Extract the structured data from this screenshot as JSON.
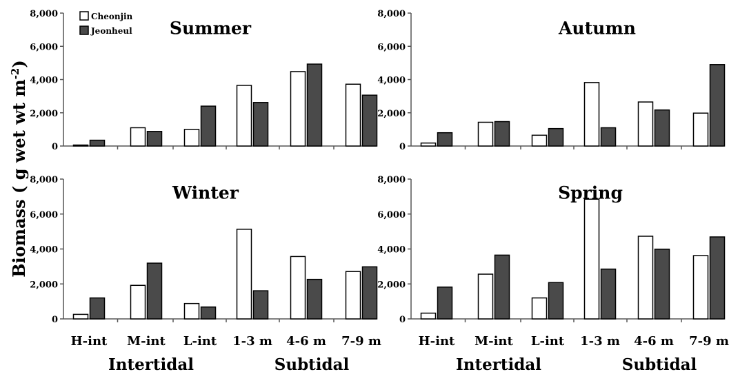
{
  "chart_data": {
    "type": "bar",
    "ylabel": "Biomass ( g wet wt m",
    "ylabel_superscript": "-2",
    "ylabel_close": ")",
    "ylim": [
      0,
      8000
    ],
    "yticks": [
      "0",
      "2,000",
      "4,000",
      "6,000",
      "8,000"
    ],
    "ytick_values": [
      0,
      2000,
      4000,
      6000,
      8000
    ],
    "categories": [
      "H-int",
      "M-int",
      "L-int",
      "1-3 m",
      "4-6 m",
      "7-9 m"
    ],
    "groups": [
      "Intertidal",
      "Subtidal"
    ],
    "legend": {
      "placement": "top-left",
      "entries": [
        {
          "name": "Cheonjin",
          "color": "#ffffff"
        },
        {
          "name": "Jeonheul",
          "color": "#4a4a4a"
        }
      ]
    },
    "panels": [
      {
        "title": "Summer",
        "series": [
          {
            "name": "Cheonjin",
            "values": [
              60,
              1100,
              1000,
              3650,
              4480,
              3720
            ]
          },
          {
            "name": "Jeonheul",
            "values": [
              350,
              880,
              2400,
              2620,
              4930,
              3060
            ]
          }
        ]
      },
      {
        "title": "Autumn",
        "series": [
          {
            "name": "Cheonjin",
            "values": [
              180,
              1430,
              650,
              3820,
              2650,
              1980
            ]
          },
          {
            "name": "Jeonheul",
            "values": [
              800,
              1470,
              1050,
              1100,
              2170,
              4900
            ]
          }
        ]
      },
      {
        "title": "Winter",
        "series": [
          {
            "name": "Cheonjin",
            "values": [
              260,
              1920,
              880,
              5130,
              3570,
              2710
            ]
          },
          {
            "name": "Jeonheul",
            "values": [
              1200,
              3190,
              680,
              1610,
              2260,
              2980
            ]
          }
        ]
      },
      {
        "title": "Spring",
        "series": [
          {
            "name": "Cheonjin",
            "values": [
              330,
              2560,
              1200,
              6850,
              4730,
              3620
            ]
          },
          {
            "name": "Jeonheul",
            "values": [
              1820,
              3650,
              2080,
              2850,
              3990,
              4690
            ]
          }
        ]
      }
    ]
  }
}
